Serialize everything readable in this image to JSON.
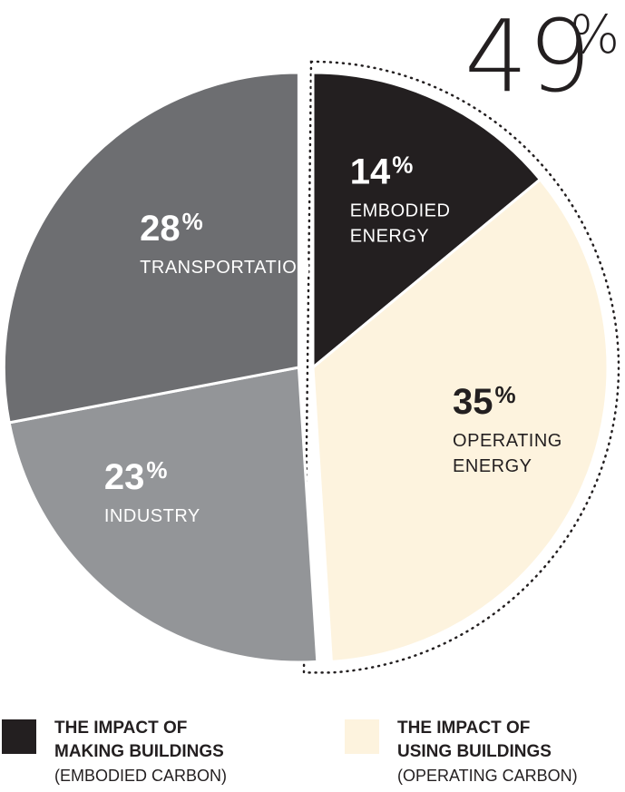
{
  "chart_data": {
    "type": "pie",
    "slices": [
      {
        "pct": 14,
        "value": "14",
        "unit": "%",
        "label": [
          "EMBODIED",
          "ENERGY"
        ],
        "color": "#231f20",
        "text_color": "#ffffff",
        "group": "making"
      },
      {
        "pct": 35,
        "value": "35",
        "unit": "%",
        "label": [
          "OPERATING",
          "ENERGY"
        ],
        "color": "#fdf3de",
        "text_color": "#231f20",
        "group": "using"
      },
      {
        "pct": 23,
        "value": "23",
        "unit": "%",
        "label": [
          "INDUSTRY"
        ],
        "color": "#939598",
        "text_color": "#ffffff",
        "group": "other"
      },
      {
        "pct": 28,
        "value": "28",
        "unit": "%",
        "label": [
          "TRANSPORTATION"
        ],
        "color": "#6d6e71",
        "text_color": "#ffffff",
        "group": "other"
      }
    ],
    "callout": {
      "value": "49",
      "unit": "%"
    }
  },
  "legend": [
    {
      "title_lines": [
        "THE IMPACT OF",
        "MAKING BUILDINGS"
      ],
      "subtitle": "(EMBODIED CARBON)",
      "color": "#231f20"
    },
    {
      "title_lines": [
        "THE IMPACT OF",
        "USING BUILDINGS"
      ],
      "subtitle": "(OPERATING CARBON)",
      "color": "#fdf3de"
    }
  ]
}
